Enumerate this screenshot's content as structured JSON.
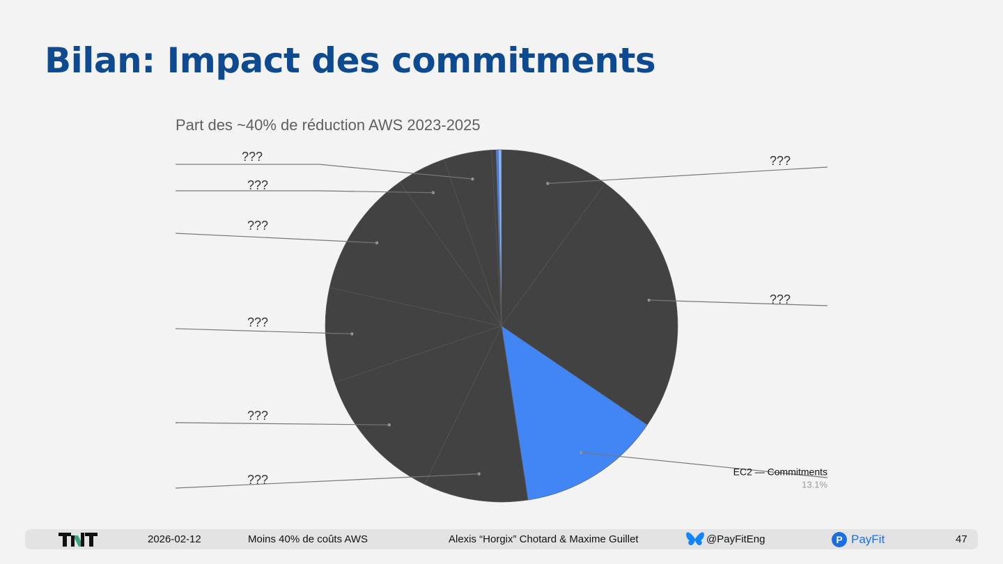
{
  "slide": {
    "title": "Bilan: Impact des commitments"
  },
  "chart_data": {
    "type": "pie",
    "title": "Part des ~40% de réduction AWS 2023-2025",
    "start": "top",
    "direction": "clockwise",
    "slices": [
      {
        "label": "???",
        "value": 10.0,
        "color": "#424242"
      },
      {
        "label": "???",
        "value": 24.5,
        "color": "#424242"
      },
      {
        "label": "EC2 — Commitments",
        "value": 13.1,
        "value_label": "13.1%",
        "color": "#4285f4"
      },
      {
        "label": "???",
        "value": 9.6,
        "color": "#424242"
      },
      {
        "label": "???",
        "value": 12.6,
        "color": "#424242"
      },
      {
        "label": "???",
        "value": 8.7,
        "color": "#424242"
      },
      {
        "label": "???",
        "value": 11.7,
        "color": "#424242"
      },
      {
        "label": "???",
        "value": 4.5,
        "color": "#424242"
      },
      {
        "label": "???",
        "value": 4.4,
        "color": "#424242"
      },
      {
        "label": "",
        "value": 0.4,
        "color": "#424242"
      },
      {
        "label": "",
        "value": 0.2,
        "color": "#4285f4"
      },
      {
        "label": "",
        "value": 0.3,
        "color": "#8ab4f8"
      }
    ]
  },
  "footer": {
    "date": "2026-02-12",
    "talk": "Moins 40% de coûts AWS",
    "authors": "Alexis “Horgix” Chotard & Maxime Guillet",
    "handle": "@PayFitEng",
    "brand": "PayFit",
    "page": "47",
    "colors": {
      "brand": "#1a6fe0",
      "butterfly": "#1185fe"
    }
  }
}
